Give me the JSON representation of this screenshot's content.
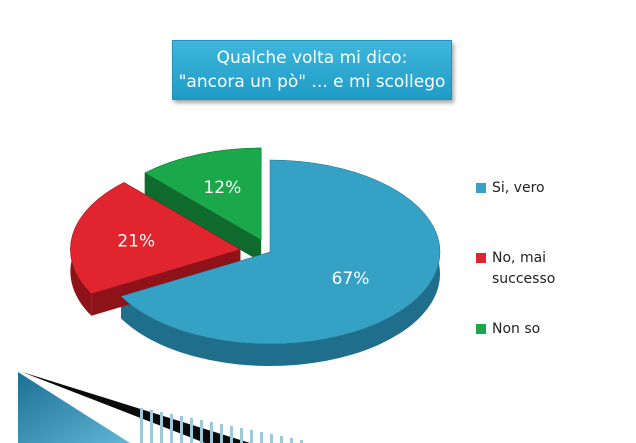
{
  "chart_data": {
    "type": "pie",
    "title_line1": "Qualche volta mi dico:",
    "title_line2": "\"ancora un pò\" ... e mi scollego",
    "slices": [
      {
        "label": "Si, vero",
        "value": 67,
        "value_label": "67%",
        "color": "#35a1c5",
        "side_color": "#1f6f8c"
      },
      {
        "label": "No, mai successo",
        "value": 21,
        "value_label": "21%",
        "color": "#e0252e",
        "side_color": "#8f1218"
      },
      {
        "label": "Non so",
        "value": 12,
        "value_label": "12%",
        "color": "#1aa84a",
        "side_color": "#0f6a2d"
      }
    ],
    "legend_position": "right"
  }
}
